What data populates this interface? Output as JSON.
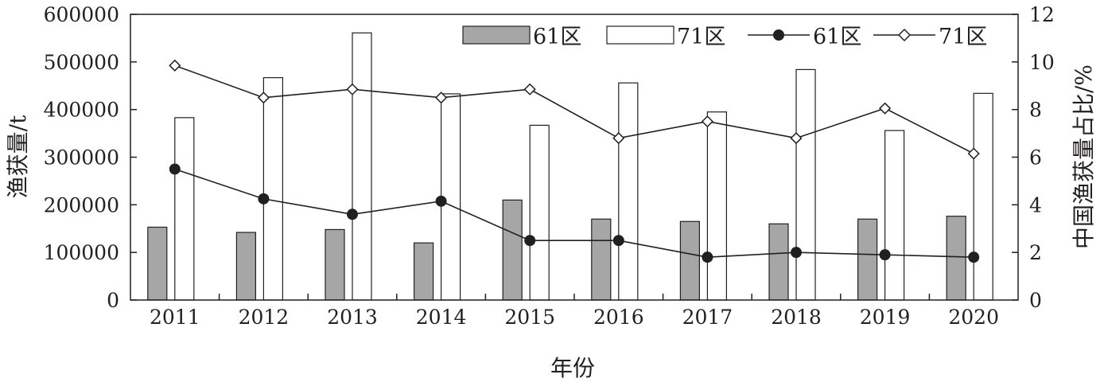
{
  "chart_data": {
    "type": "bar+line",
    "categories": [
      "2011",
      "2012",
      "2013",
      "2014",
      "2015",
      "2016",
      "2017",
      "2018",
      "2019",
      "2020"
    ],
    "xlabel": "年份",
    "ylabel_left": "渔获量/t",
    "ylabel_right": "中国渔获量占比/%",
    "ylim_left": [
      0,
      600000
    ],
    "ylim_right": [
      0,
      12
    ],
    "yticks_left": [
      "0",
      "100000",
      "200000",
      "300000",
      "400000",
      "500000",
      "600000"
    ],
    "yticks_right": [
      "0",
      "2",
      "4",
      "6",
      "8",
      "10",
      "12"
    ],
    "grid": false,
    "legend_position": "top-right",
    "series": [
      {
        "name": "61区",
        "kind": "bar",
        "axis": "left",
        "color": "#a6a6a6",
        "values": [
          153000,
          142000,
          148000,
          120000,
          210000,
          170000,
          165000,
          160000,
          170000,
          176000
        ]
      },
      {
        "name": "71区",
        "kind": "bar",
        "axis": "left",
        "color": "#ffffff",
        "values": [
          383000,
          467000,
          561000,
          433000,
          367000,
          456000,
          395000,
          484000,
          356000,
          434000
        ]
      },
      {
        "name": "61区",
        "kind": "line",
        "axis": "right",
        "marker": "filled-circle",
        "color": "#231f20",
        "values": [
          5.5,
          4.25,
          3.6,
          4.15,
          2.5,
          2.5,
          1.8,
          2.0,
          1.9,
          1.8
        ]
      },
      {
        "name": "71区",
        "kind": "line",
        "axis": "right",
        "marker": "open-diamond",
        "color": "#231f20",
        "values": [
          9.85,
          8.5,
          8.85,
          8.5,
          8.85,
          6.8,
          7.5,
          6.8,
          8.05,
          6.15
        ]
      }
    ]
  }
}
